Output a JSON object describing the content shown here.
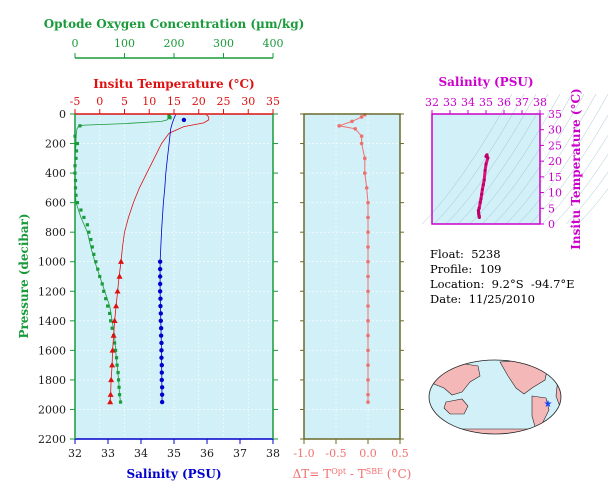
{
  "info": {
    "float": "Float:  5238",
    "profile": "Profile:  109",
    "location": "Location:  9.2°S  -94.7°E",
    "date": "Date:  11/25/2010"
  },
  "credit": "",
  "colors": {
    "oxygen": "#1a9a3a",
    "temperature": "#dd1111",
    "salinity": "#0000cc",
    "delta": "#f07070",
    "ts": "#cc00cc",
    "ts_line": "#e0107a",
    "panel_bg": "#d2f0f8",
    "land": "#f5b8b8",
    "ocean": "#d2f0f8"
  },
  "chart_data": [
    {
      "type": "line",
      "panel": "profile",
      "ylabel": "Pressure (decibar)",
      "ylim": [
        2200,
        0
      ],
      "yticks": [
        0,
        200,
        400,
        600,
        800,
        1000,
        1200,
        1400,
        1600,
        1800,
        2000,
        2200
      ],
      "axes": {
        "oxygen": {
          "title": "Optode Oxygen Concentration (µm/kg)",
          "range": [
            0,
            400
          ],
          "ticks": [
            0,
            100,
            200,
            300,
            400
          ]
        },
        "temperature": {
          "title": "Insitu Temperature (°C)",
          "range": [
            -5,
            35
          ],
          "ticks": [
            -5,
            0,
            5,
            10,
            15,
            20,
            25,
            30,
            35
          ]
        },
        "salinity": {
          "title": "Salinity (PSU)",
          "range": [
            32,
            38
          ],
          "ticks": [
            32,
            33,
            34,
            35,
            36,
            37,
            38
          ]
        }
      },
      "series": [
        {
          "axis": "oxygen",
          "line": [
            [
              192,
              5
            ],
            [
              190,
              20
            ],
            [
              186,
              40
            ],
            [
              175,
              50
            ],
            [
              100,
              65
            ],
            [
              20,
              75
            ],
            [
              8,
              80
            ],
            [
              4,
              100
            ],
            [
              2,
              150
            ],
            [
              2,
              200
            ],
            [
              1,
              250
            ],
            [
              0,
              300
            ],
            [
              0,
              400
            ],
            [
              0,
              500
            ],
            [
              2,
              600
            ],
            [
              12,
              700
            ],
            [
              25,
              800
            ],
            [
              32,
              900
            ],
            [
              40,
              1000
            ],
            [
              50,
              1100
            ],
            [
              60,
              1200
            ],
            [
              70,
              1300
            ],
            [
              75,
              1400
            ],
            [
              80,
              1500
            ],
            [
              82,
              1600
            ],
            [
              85,
              1700
            ],
            [
              88,
              1800
            ],
            [
              90,
              1900
            ],
            [
              92,
              1950
            ]
          ],
          "points": [
            [
              190,
              10
            ],
            [
              190,
              20
            ],
            [
              192,
              25
            ],
            [
              10,
              80
            ],
            [
              0,
              150
            ],
            [
              5,
              200
            ],
            [
              3,
              250
            ],
            [
              2,
              300
            ],
            [
              0,
              350
            ],
            [
              0,
              400
            ],
            [
              1,
              450
            ],
            [
              1,
              500
            ],
            [
              2,
              550
            ],
            [
              5,
              600
            ],
            [
              12,
              650
            ],
            [
              18,
              700
            ],
            [
              25,
              750
            ],
            [
              28,
              800
            ],
            [
              32,
              850
            ],
            [
              35,
              900
            ],
            [
              38,
              950
            ],
            [
              42,
              1000
            ],
            [
              46,
              1050
            ],
            [
              50,
              1100
            ],
            [
              55,
              1150
            ],
            [
              58,
              1200
            ],
            [
              62,
              1250
            ],
            [
              66,
              1300
            ],
            [
              70,
              1350
            ],
            [
              72,
              1400
            ],
            [
              75,
              1450
            ],
            [
              78,
              1500
            ],
            [
              80,
              1550
            ],
            [
              82,
              1600
            ],
            [
              84,
              1650
            ],
            [
              85,
              1700
            ],
            [
              87,
              1750
            ],
            [
              88,
              1800
            ],
            [
              89,
              1850
            ],
            [
              90,
              1900
            ],
            [
              92,
              1950
            ]
          ]
        },
        {
          "axis": "temperature",
          "line": [
            [
              21.5,
              5
            ],
            [
              22,
              20
            ],
            [
              22,
              40
            ],
            [
              21,
              60
            ],
            [
              17,
              85
            ],
            [
              14,
              130
            ],
            [
              12.5,
              200
            ],
            [
              11,
              300
            ],
            [
              9.5,
              400
            ],
            [
              8,
              500
            ],
            [
              6.8,
              600
            ],
            [
              5.8,
              700
            ],
            [
              5,
              800
            ],
            [
              4.6,
              900
            ],
            [
              4.3,
              1000
            ],
            [
              3.9,
              1100
            ],
            [
              3.6,
              1200
            ],
            [
              3.3,
              1300
            ],
            [
              3.0,
              1400
            ],
            [
              2.8,
              1500
            ],
            [
              2.6,
              1600
            ],
            [
              2.5,
              1700
            ],
            [
              2.3,
              1800
            ],
            [
              2.2,
              1900
            ],
            [
              2.1,
              1950
            ]
          ],
          "points": [
            [
              4.3,
              1000
            ],
            [
              4.0,
              1100
            ],
            [
              3.6,
              1200
            ],
            [
              3.3,
              1300
            ],
            [
              3.0,
              1400
            ],
            [
              2.8,
              1500
            ],
            [
              2.6,
              1600
            ],
            [
              2.5,
              1700
            ],
            [
              2.3,
              1800
            ],
            [
              2.2,
              1900
            ],
            [
              2.1,
              1950
            ]
          ]
        },
        {
          "axis": "salinity",
          "line": [
            [
              35.05,
              5
            ],
            [
              35.0,
              30
            ],
            [
              34.95,
              60
            ],
            [
              34.9,
              100
            ],
            [
              34.85,
              200
            ],
            [
              34.8,
              300
            ],
            [
              34.75,
              400
            ],
            [
              34.72,
              500
            ],
            [
              34.68,
              600
            ],
            [
              34.65,
              700
            ],
            [
              34.62,
              800
            ],
            [
              34.6,
              900
            ],
            [
              34.58,
              1000
            ],
            [
              34.58,
              1100
            ],
            [
              34.58,
              1200
            ],
            [
              34.6,
              1400
            ],
            [
              34.62,
              1600
            ],
            [
              34.63,
              1800
            ],
            [
              34.64,
              1950
            ]
          ],
          "points": [
            [
              35.3,
              40
            ],
            [
              34.58,
              1000
            ],
            [
              34.58,
              1050
            ],
            [
              34.58,
              1100
            ],
            [
              34.58,
              1150
            ],
            [
              34.58,
              1200
            ],
            [
              34.59,
              1250
            ],
            [
              34.59,
              1300
            ],
            [
              34.6,
              1350
            ],
            [
              34.6,
              1400
            ],
            [
              34.61,
              1450
            ],
            [
              34.61,
              1500
            ],
            [
              34.62,
              1550
            ],
            [
              34.62,
              1600
            ],
            [
              34.62,
              1650
            ],
            [
              34.63,
              1700
            ],
            [
              34.63,
              1750
            ],
            [
              34.63,
              1800
            ],
            [
              34.64,
              1850
            ],
            [
              34.64,
              1900
            ],
            [
              34.64,
              1950
            ]
          ]
        }
      ]
    },
    {
      "type": "line",
      "panel": "delta",
      "xlabel": "ΔT= TOpt - TSBE (°C)",
      "xlim": [
        -1.0,
        0.5
      ],
      "xticks": [
        "-1.0",
        "-0.5",
        "0.0",
        "0.5"
      ],
      "ylim": [
        2200,
        0
      ],
      "series": [
        {
          "points": [
            [
              -0.05,
              5
            ],
            [
              -0.1,
              20
            ],
            [
              -0.25,
              50
            ],
            [
              -0.45,
              80
            ],
            [
              -0.2,
              100
            ],
            [
              -0.1,
              150
            ],
            [
              -0.1,
              200
            ],
            [
              -0.05,
              300
            ],
            [
              -0.05,
              400
            ],
            [
              -0.02,
              500
            ],
            [
              0.0,
              600
            ],
            [
              0.0,
              700
            ],
            [
              0.0,
              800
            ],
            [
              0.0,
              900
            ],
            [
              0.0,
              1000
            ],
            [
              0.0,
              1100
            ],
            [
              0.0,
              1200
            ],
            [
              0.0,
              1300
            ],
            [
              0.0,
              1400
            ],
            [
              0.0,
              1500
            ],
            [
              0.0,
              1600
            ],
            [
              0.0,
              1700
            ],
            [
              0.0,
              1800
            ],
            [
              0.0,
              1900
            ],
            [
              0.0,
              1950
            ]
          ]
        }
      ]
    },
    {
      "type": "line",
      "panel": "ts",
      "title": "Salinity (PSU)",
      "ylabel": "Insitu Temperature (°C)",
      "xlim": [
        32,
        38
      ],
      "ylim": [
        0,
        35
      ],
      "xticks": [
        32,
        33,
        34,
        35,
        36,
        37,
        38
      ],
      "yticks": [
        0,
        5,
        10,
        15,
        20,
        25,
        30,
        35
      ],
      "series": [
        {
          "points": [
            [
              34.63,
              2.1
            ],
            [
              34.62,
              2.6
            ],
            [
              34.6,
              3.0
            ],
            [
              34.59,
              3.6
            ],
            [
              34.58,
              4.3
            ],
            [
              34.62,
              5.0
            ],
            [
              34.68,
              6.8
            ],
            [
              34.72,
              8.0
            ],
            [
              34.76,
              9.5
            ],
            [
              34.8,
              11
            ],
            [
              34.85,
              12.5
            ],
            [
              34.9,
              14
            ],
            [
              34.95,
              17
            ],
            [
              35.0,
              19
            ],
            [
              35.1,
              21
            ],
            [
              35.05,
              22
            ],
            [
              35.0,
              21.5
            ]
          ]
        }
      ]
    }
  ]
}
